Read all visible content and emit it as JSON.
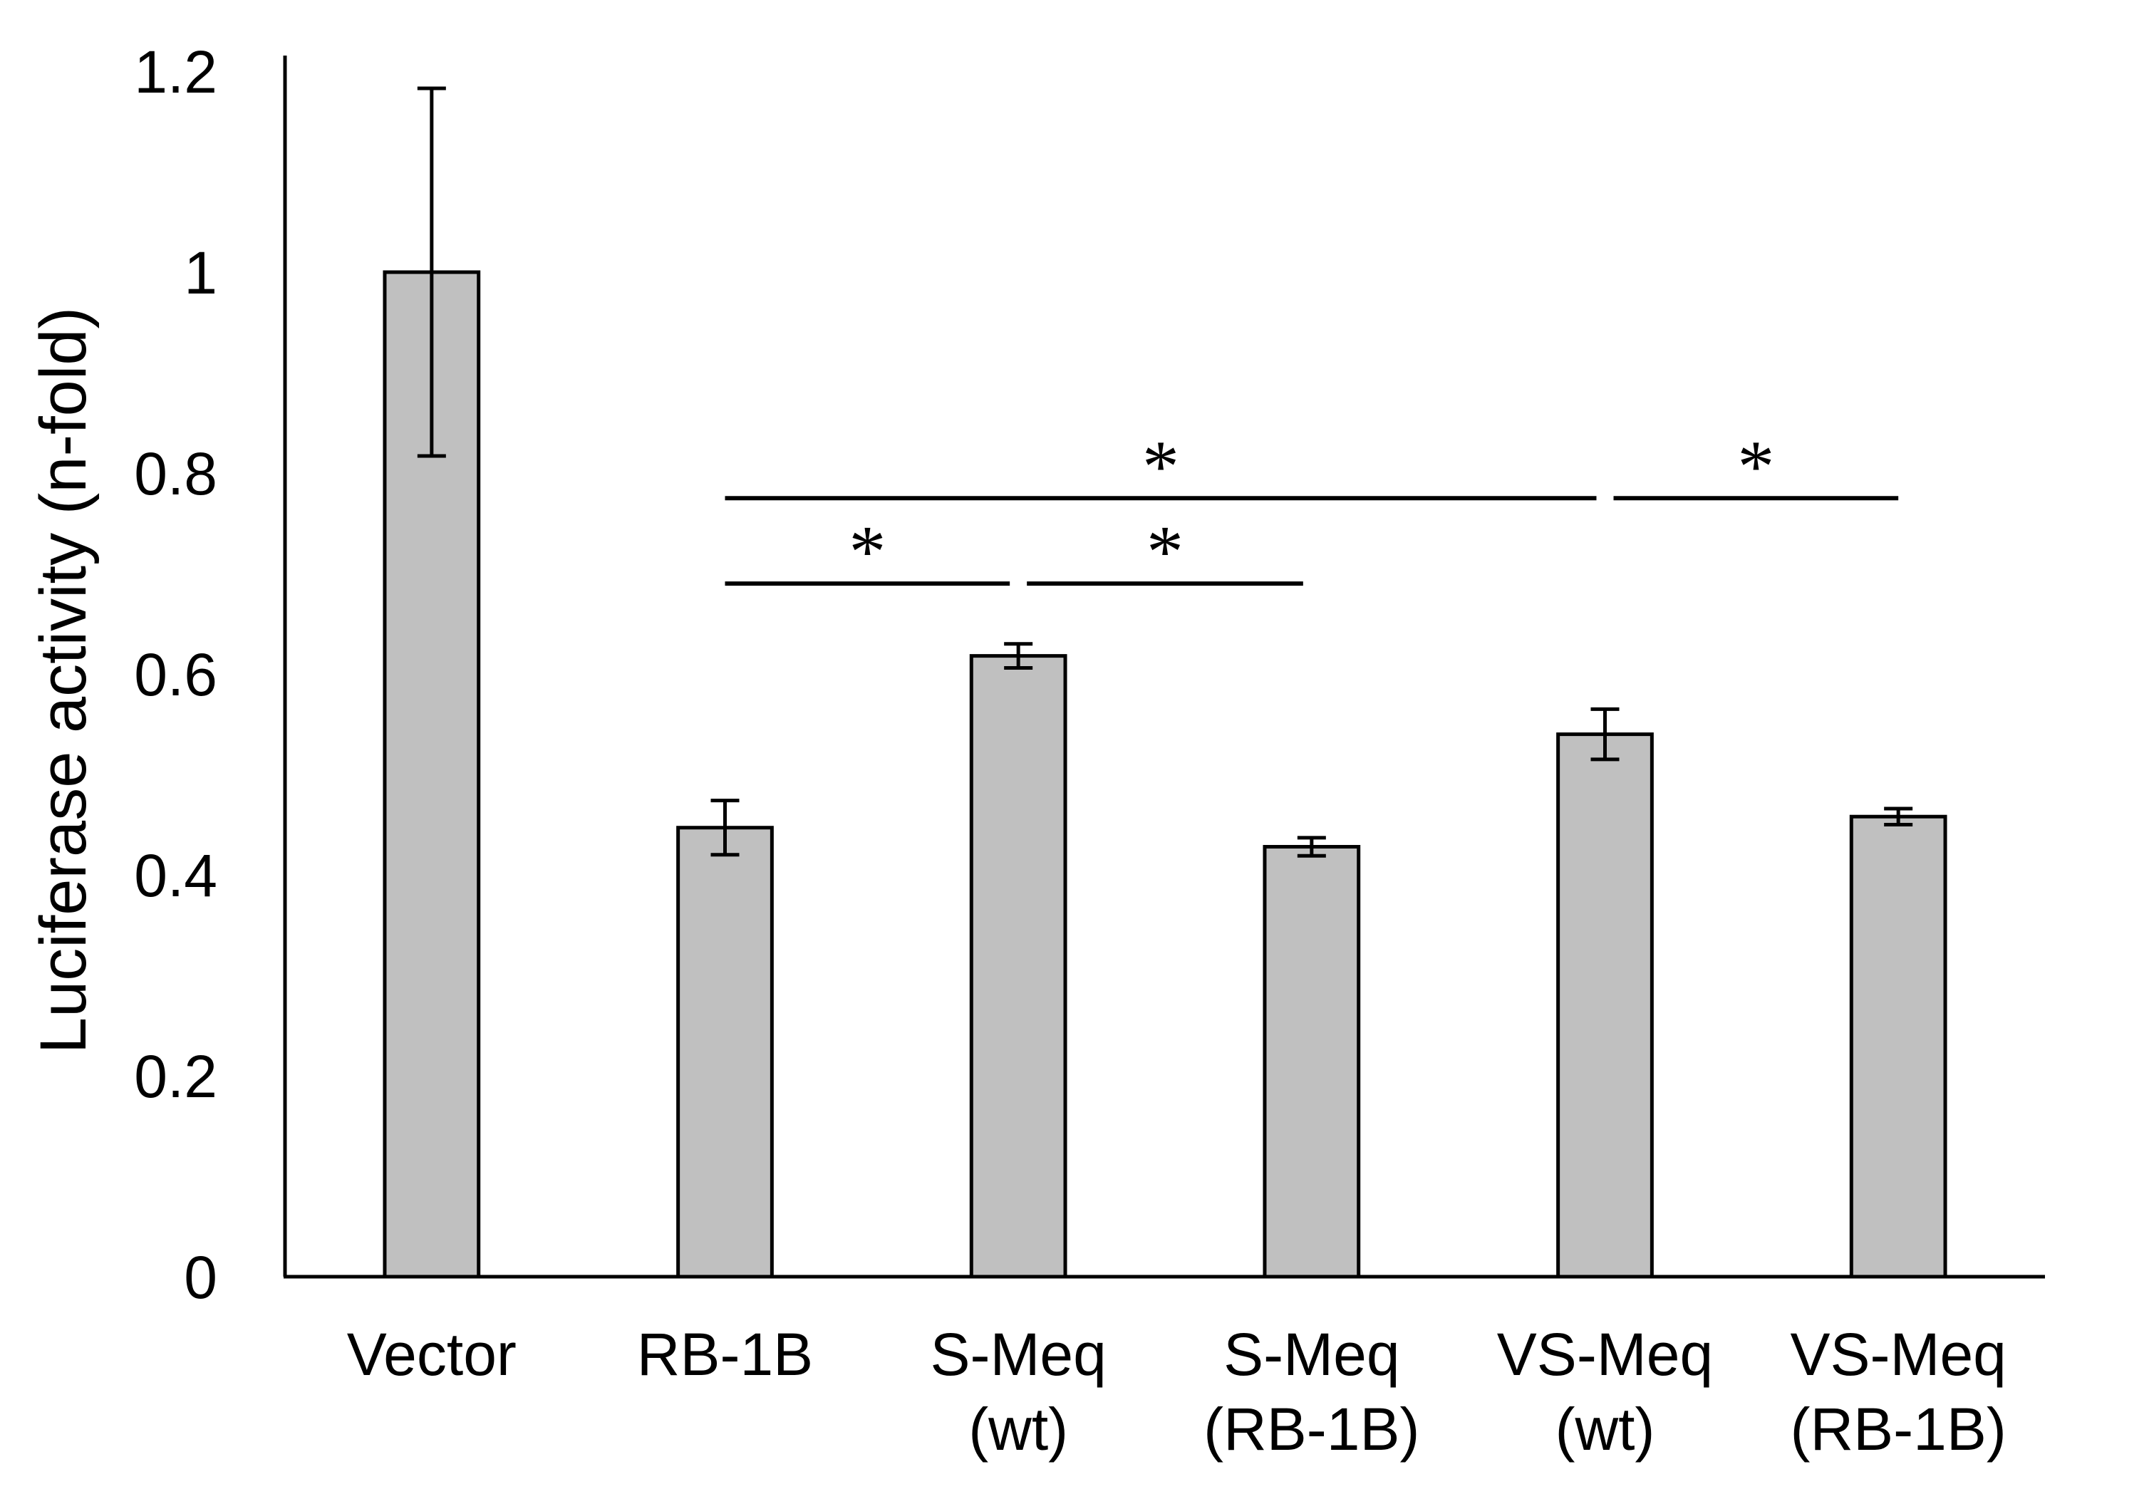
{
  "chart_data": {
    "type": "bar",
    "title": "",
    "xlabel": "",
    "ylabel": "Luciferase activity (n-fold)",
    "ylim": [
      0,
      1.2
    ],
    "yticks": [
      "0",
      "0.2",
      "0.4",
      "0.6",
      "0.8",
      "1",
      "1.2"
    ],
    "grid": false,
    "bar_color": "#c0c0c0",
    "categories": [
      [
        "Vector"
      ],
      [
        "RB-1B"
      ],
      [
        "S-Meq",
        "(wt)"
      ],
      [
        "S-Meq",
        "(RB-1B)"
      ],
      [
        "VS-Meq",
        "(wt)"
      ],
      [
        "VS-Meq",
        "(RB-1B)"
      ]
    ],
    "values": [
      1.0,
      0.447,
      0.618,
      0.428,
      0.54,
      0.458
    ],
    "error": [
      0.183,
      0.027,
      0.012,
      0.009,
      0.025,
      0.008
    ],
    "significance": [
      {
        "from": 1,
        "to": 2,
        "label": "*",
        "value": 0.69
      },
      {
        "from": 2,
        "to": 3,
        "label": "*",
        "value": 0.69
      },
      {
        "from": 1,
        "to": 4,
        "label": "*",
        "value": 0.775
      },
      {
        "from": 4,
        "to": 5,
        "label": "*",
        "value": 0.775
      }
    ]
  }
}
